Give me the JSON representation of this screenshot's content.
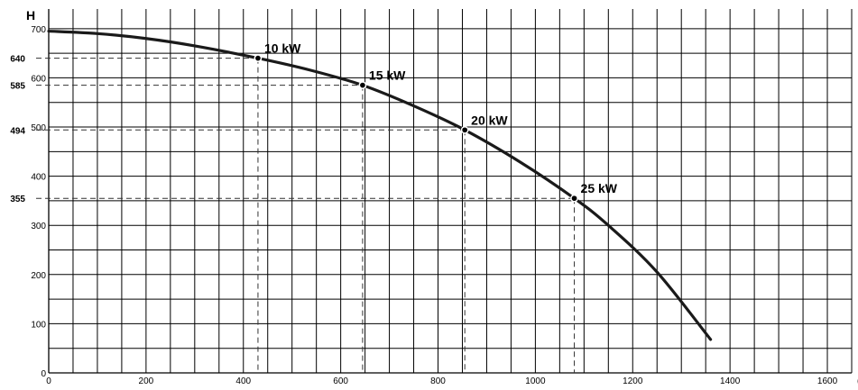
{
  "chart_data": {
    "type": "line",
    "xlabel": "Q",
    "ylabel": "H",
    "xlim": [
      0,
      1650
    ],
    "ylim": [
      0,
      740
    ],
    "x_ticks": [
      0,
      200,
      400,
      600,
      800,
      1000,
      1200,
      1400,
      1600
    ],
    "x_tick_labels": [
      "0",
      "200",
      "400",
      "600",
      "800",
      "1000",
      "1200",
      "1400",
      "1600"
    ],
    "y_ticks": [
      0,
      100,
      200,
      300,
      400,
      500,
      600,
      700
    ],
    "y_tick_labels": [
      "0",
      "100",
      "200",
      "300",
      "400",
      "500",
      "600",
      "700"
    ],
    "grid": true,
    "series": [
      {
        "x": [
          0,
          100,
          200,
          300,
          430,
          540,
          645,
          750,
          855,
          970,
          1080,
          1150,
          1250,
          1360
        ],
        "y": [
          695,
          690,
          680,
          665,
          640,
          615,
          585,
          543,
          494,
          428,
          355,
          300,
          205,
          68
        ]
      }
    ],
    "operating_points": [
      {
        "label": "10 kW",
        "q": 430,
        "h": 640,
        "h_label": "640"
      },
      {
        "label": "15 kW",
        "q": 645,
        "h": 585,
        "h_label": "585"
      },
      {
        "label": "20 kW",
        "q": 855,
        "h": 494,
        "h_label": "494"
      },
      {
        "label": "25 kW",
        "q": 1080,
        "h": 355,
        "h_label": "355"
      }
    ]
  }
}
